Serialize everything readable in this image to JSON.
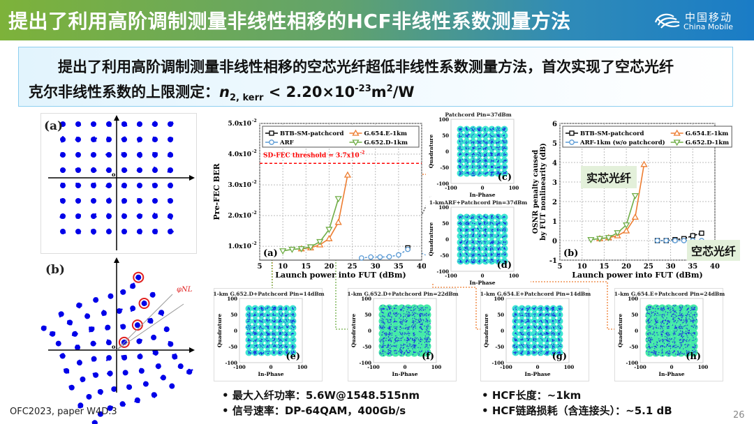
{
  "header": {
    "title": "提出了利用高阶调制测量非线性相移的HCF非线性系数测量方法",
    "logo_cn": "中国移动",
    "logo_en": "China Mobile"
  },
  "summary": {
    "line1": "提出了利用高阶调制测量非线性相移的空芯光纤超低非线性系数测量方法，首次实现了空芯光纤",
    "line2_prefix": "克尔非线性系数的上限测定：",
    "symbol": "n",
    "subscript": "2, kerr",
    "relation": " < 2.20×10",
    "exp": "-23",
    "unit": "m",
    "unit_exp": "2",
    "unit_tail": "/W"
  },
  "constellations_left": [
    {
      "label": "(a)",
      "origin": "o"
    },
    {
      "label": "(b)",
      "origin": "o",
      "annotation": "φNL"
    }
  ],
  "colors": {
    "btb": "#000000",
    "arf": "#5b9bd5",
    "g654": "#ed7d31",
    "g652": "#70ad47",
    "threshold": "#ff0000",
    "qam_fill": "#3ee6d2",
    "qam_dots": "#1a2fe0"
  },
  "chart_data": [
    {
      "type": "line",
      "panel_label": "(a)",
      "xlabel": "Launch power into FUT (dBm)",
      "ylabel": "Pre-FEC BER",
      "xlim": [
        5,
        40
      ],
      "ylim": [
        0.0055,
        0.05
      ],
      "xticks": [
        5,
        10,
        15,
        20,
        25,
        30,
        35,
        40
      ],
      "yticks": [
        {
          "v": 0.01,
          "label": "1.0x10",
          "exp": "-2"
        },
        {
          "v": 0.02,
          "label": "2.0x10",
          "exp": "-2"
        },
        {
          "v": 0.03,
          "label": "3.0x10",
          "exp": "-2"
        },
        {
          "v": 0.04,
          "label": "4.0x10",
          "exp": "-2"
        },
        {
          "v": 0.05,
          "label": "5.0x10",
          "exp": "-2"
        }
      ],
      "grid": true,
      "legend_position": "top",
      "threshold": {
        "value": 0.037,
        "label": "SD-FEC threshold = 3.7x10",
        "exp": "-2"
      },
      "series": [
        {
          "name": "BTB-SM-patchcord",
          "key": "btb",
          "marker": "square",
          "x": [
            37
          ],
          "y": [
            0.0095
          ]
        },
        {
          "name": "G.654.E-1km",
          "key": "g654",
          "marker": "triangle-up",
          "x": [
            14,
            16,
            18,
            20,
            22,
            24
          ],
          "y": [
            0.0092,
            0.0095,
            0.0105,
            0.0125,
            0.0178,
            0.0332
          ]
        },
        {
          "name": "ARF",
          "key": "arf",
          "marker": "circle",
          "x": [
            27,
            29,
            31,
            33,
            35,
            37
          ],
          "y": [
            0.0062,
            0.0065,
            0.0065,
            0.0066,
            0.0072,
            0.009
          ]
        },
        {
          "name": "G.652.D-1km",
          "key": "g652",
          "marker": "triangle-down",
          "x": [
            10,
            12,
            14,
            16,
            18,
            20,
            22
          ],
          "y": [
            0.0085,
            0.009,
            0.0092,
            0.0098,
            0.0115,
            0.0155,
            0.0255
          ]
        }
      ]
    },
    {
      "type": "line",
      "panel_label": "(b)",
      "xlabel": "Launch power into FUT (dBm)",
      "ylabel": "OSNR penalty caused by FUT nonlinearity (dB)",
      "ylabel_lines": [
        "OSNR penalty caused",
        "by FUT nonlinearity (dB)"
      ],
      "xlim": [
        5,
        40
      ],
      "ylim": [
        -1,
        6
      ],
      "xticks": [
        5,
        10,
        15,
        20,
        25,
        30,
        35,
        40
      ],
      "yticks": [
        -1,
        0,
        1,
        2,
        3,
        4,
        5,
        6
      ],
      "grid": true,
      "legend_position": "top",
      "annotations": [
        "实芯光纤",
        "空芯光纤"
      ],
      "series": [
        {
          "name": "BTB-SM-patchcord",
          "key": "btb",
          "marker": "square",
          "x": [
            27,
            29,
            31,
            33,
            35,
            37
          ],
          "y": [
            0,
            0,
            0.05,
            0.1,
            0.25,
            0.38
          ]
        },
        {
          "name": "G.654.E-1km",
          "key": "g654",
          "marker": "triangle-up",
          "x": [
            14,
            16,
            18,
            20,
            22,
            24
          ],
          "y": [
            0.1,
            0.15,
            0.25,
            0.5,
            1.2,
            3.9
          ]
        },
        {
          "name": "ARF-1km (w/o patchcord)",
          "key": "arf",
          "marker": "circle",
          "x": [
            27,
            29,
            31,
            33,
            35,
            37
          ],
          "y": [
            0,
            0,
            0,
            0,
            0,
            0
          ]
        },
        {
          "name": "G.652.D-1km",
          "key": "g652",
          "marker": "triangle-down",
          "x": [
            12,
            14,
            16,
            18,
            20,
            22
          ],
          "y": [
            0.05,
            0.1,
            0.15,
            0.4,
            0.8,
            2.3
          ]
        }
      ]
    }
  ],
  "qam_plots": [
    {
      "id": "c",
      "title": "Patchcord Pin=37dBm",
      "label": "(c)",
      "distortion": 0
    },
    {
      "id": "d",
      "title": "1-kmARF+Patchcord Pin=37dBm",
      "label": "(d)",
      "distortion": 0
    },
    {
      "id": "e",
      "title": "1-km G.652.D+Patchcord Pin=14dBm",
      "label": "(e)",
      "distortion": 0
    },
    {
      "id": "f",
      "title": "1-km G.652.D+Patchcord Pin=22dBm",
      "label": "(f)",
      "distortion": 1
    },
    {
      "id": "g",
      "title": "1-km G.654.E+Patchcord Pin=14dBm",
      "label": "(g)",
      "distortion": 0
    },
    {
      "id": "h",
      "title": "1-km G.654.E+Patchcord Pin=24dBm",
      "label": "(h)",
      "distortion": 1
    }
  ],
  "qam_axes": {
    "xlabel": "In-Phase",
    "ylabel": "Quadrature",
    "ticks": [
      "-100",
      "0",
      "100"
    ],
    "yticks": [
      "100",
      "50",
      "0",
      "-50",
      "-100"
    ]
  },
  "bullets_left": [
    "最大入纤功率：5.6W@1548.515nm",
    "信号速率：DP-64QAM，400Gb/s"
  ],
  "bullets_right": [
    "HCF长度：~1km",
    "HCF链路损耗（含连接头）：~5.1 dB"
  ],
  "footer": {
    "source": "OFC2023, paper W4D.3",
    "page": "26"
  }
}
